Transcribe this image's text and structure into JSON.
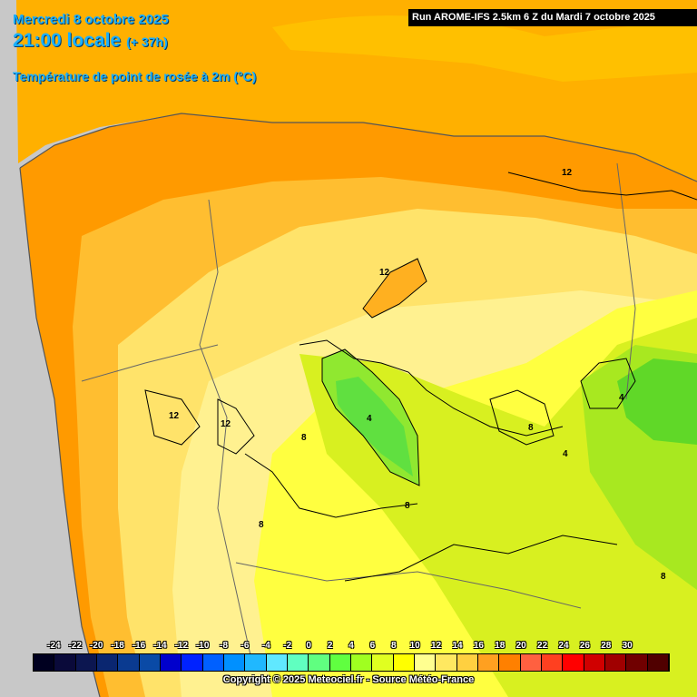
{
  "header": {
    "date": "Mercredi 8 octobre 2025",
    "time": "21:00 locale",
    "offset": "(+ 37h)",
    "parameter": "Température de point de rosée à 2m (°C)",
    "run": "Run AROME-IFS 2.5km 6 Z du Mardi 7 octobre 2025"
  },
  "contour_labels": [
    "12",
    "12",
    "12",
    "12",
    "4",
    "4",
    "4",
    "8",
    "8",
    "8",
    "8",
    "8"
  ],
  "legend": {
    "ticks": [
      "-24",
      "-22",
      "-20",
      "-18",
      "-16",
      "-14",
      "-12",
      "-10",
      "-8",
      "-6",
      "-4",
      "-2",
      "0",
      "2",
      "4",
      "6",
      "8",
      "10",
      "12",
      "14",
      "16",
      "18",
      "20",
      "22",
      "24",
      "26",
      "28",
      "30"
    ],
    "colors": [
      "#000020",
      "#0a0a3a",
      "#0c1650",
      "#0a2670",
      "#0a3a90",
      "#0a4aa6",
      "#0000cc",
      "#0022ff",
      "#0060ff",
      "#0090ff",
      "#20b8ff",
      "#60e8ff",
      "#60ffc0",
      "#60ff80",
      "#60ff40",
      "#a0ff20",
      "#e0ff20",
      "#ffff00",
      "#ffff90",
      "#ffe860",
      "#ffd040",
      "#ffa020",
      "#ff8000",
      "#ff6040",
      "#ff4020",
      "#ff0000",
      "#d00000",
      "#a00000",
      "#700000",
      "#500000"
    ]
  },
  "copyright": "Copyright © 2025 Meteociel.fr - Source Météo-France"
}
